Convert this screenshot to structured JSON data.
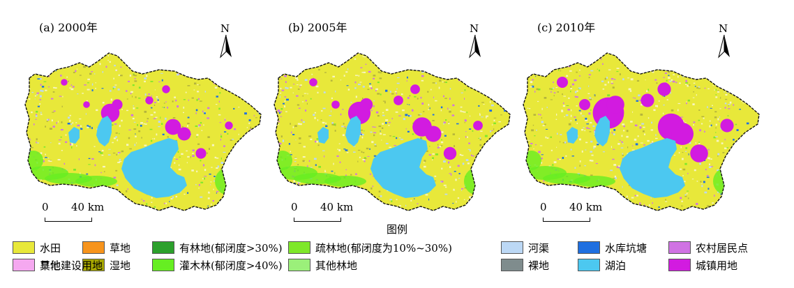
{
  "panels": [
    {
      "title": "(a) 2000年",
      "north_label": "N",
      "scale": {
        "zero": "0",
        "dist": "40 km"
      },
      "urban_level": 0.35
    },
    {
      "title": "(b) 2005年",
      "north_label": "N",
      "scale": {
        "zero": "0",
        "dist": "40 km"
      },
      "urban_level": 0.55
    },
    {
      "title": "(c) 2010年",
      "north_label": "N",
      "scale": {
        "zero": "0",
        "dist": "40 km"
      },
      "urban_level": 1.0
    }
  ],
  "legend": {
    "title": "图例",
    "items": [
      {
        "label": "水田",
        "color": "#e8e83a"
      },
      {
        "label": "草地",
        "color": "#f7941d"
      },
      {
        "label": "有林地(郁闭度>30%)",
        "color": "#2ca02c"
      },
      {
        "label": "疏林地(郁闭度为10%~30%)",
        "color": "#7ee82a"
      },
      {
        "label": "河渠",
        "color": "#bcd8f5"
      },
      {
        "label": "水库坑塘",
        "color": "#1f6fe0"
      },
      {
        "label": "农村居民点",
        "color": "#d073e3"
      },
      {
        "label": "旱地",
        "color": "#f7f5c0"
      },
      {
        "label": "湿地",
        "color": "#a8a800"
      },
      {
        "label": "灌木林(郁闭度>40%)",
        "color": "#66ee22"
      },
      {
        "label": "其他林地",
        "color": "#9bf07a"
      },
      {
        "label": "裸地",
        "color": "#7f8c8d"
      },
      {
        "label": "湖泊",
        "color": "#4cc8f0"
      },
      {
        "label": "城镇用地",
        "color": "#d21be0"
      },
      {
        "label": "其他建设用地",
        "color": "#f5a8f0"
      }
    ]
  }
}
